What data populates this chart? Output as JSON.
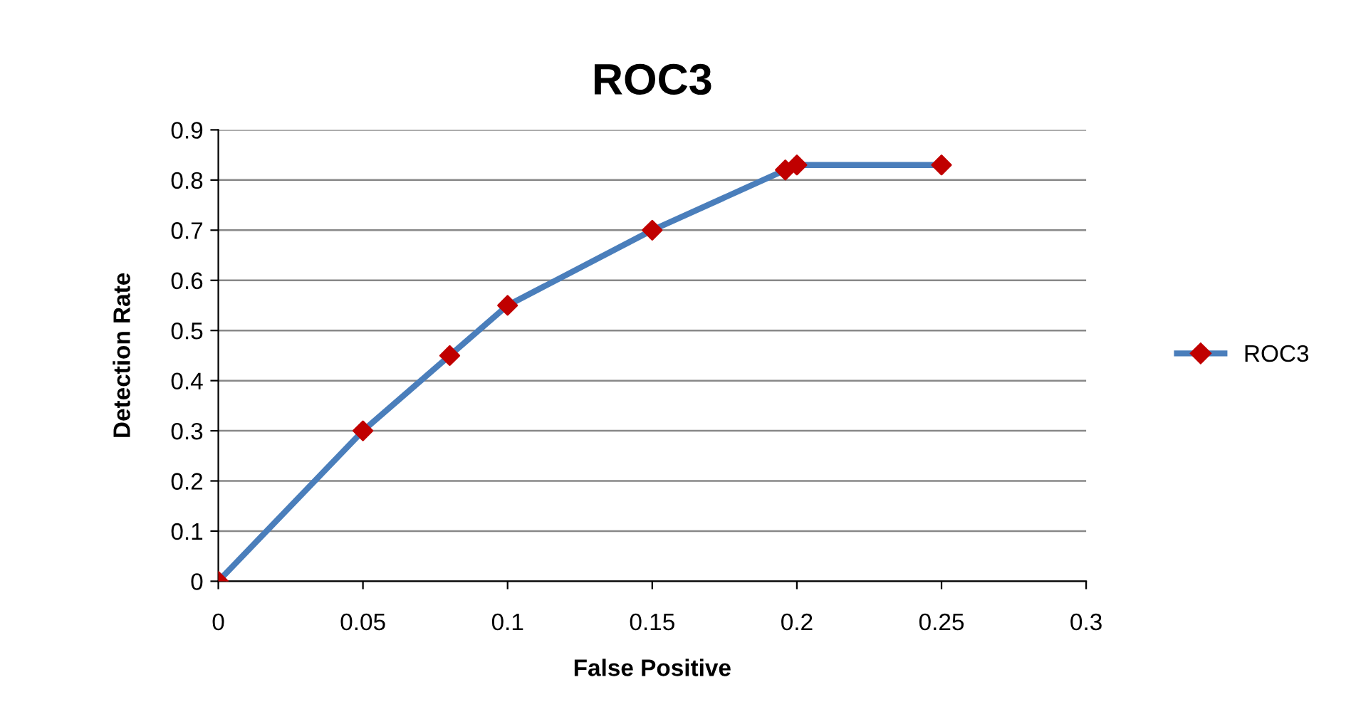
{
  "chart_data": {
    "type": "line",
    "title": "ROC3",
    "xlabel": "False Positive",
    "ylabel": "Detection Rate",
    "series": [
      {
        "name": "ROC3",
        "color": "#4a7ebb",
        "colors": [
          "#c00000",
          "#c00000",
          "#c00000",
          "#c00000",
          "#c00000",
          "#c00000",
          "#c00000",
          "#c00000"
        ],
        "x": [
          0,
          0.05,
          0.08,
          0.1,
          0.15,
          0.196,
          0.2,
          0.25
        ],
        "values": [
          0,
          0.3,
          0.45,
          0.55,
          0.7,
          0.82,
          0.83,
          0.83
        ]
      }
    ],
    "xlim": [
      0,
      0.3
    ],
    "xticks": [
      0,
      0.05,
      0.1,
      0.15,
      0.2,
      0.25,
      0.3
    ],
    "ylim": [
      0,
      0.9
    ],
    "yticks": [
      0,
      0.1,
      0.2,
      0.3,
      0.4,
      0.5,
      0.6,
      0.7,
      0.8,
      0.9
    ],
    "grid": "y",
    "legend": "right",
    "marker": "diamond",
    "line_style": "solid"
  }
}
